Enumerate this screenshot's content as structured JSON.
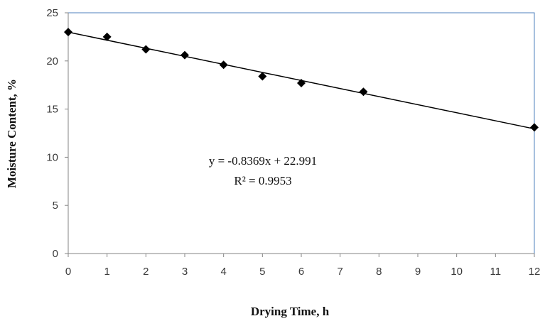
{
  "chart_data": {
    "type": "scatter",
    "title": "",
    "xlabel": "Drying Time, h",
    "ylabel": "Moisture Content, %",
    "xlim": [
      0,
      12
    ],
    "ylim": [
      0,
      25
    ],
    "xticks": [
      "0",
      "1",
      "2",
      "3",
      "4",
      "5",
      "6",
      "7",
      "8",
      "9",
      "10",
      "11",
      "12"
    ],
    "yticks": [
      "0",
      "5",
      "10",
      "15",
      "20",
      "25"
    ],
    "grid": false,
    "legend": "none",
    "series": [
      {
        "marker": "diamond",
        "color": "#000000",
        "points": [
          {
            "x": 0,
            "y": 23.0
          },
          {
            "x": 1,
            "y": 22.5
          },
          {
            "x": 2,
            "y": 21.2
          },
          {
            "x": 3,
            "y": 20.6
          },
          {
            "x": 4,
            "y": 19.6
          },
          {
            "x": 5,
            "y": 18.4
          },
          {
            "x": 6,
            "y": 17.7
          },
          {
            "x": 7.6,
            "y": 16.8
          },
          {
            "x": 12,
            "y": 13.1
          }
        ]
      }
    ],
    "trendline": {
      "type": "linear",
      "slope": -0.8369,
      "intercept": 22.991,
      "color": "#000000"
    },
    "annotations": {
      "equation": "y = -0.8369x + 22.991",
      "r_squared": "R² = 0.9953"
    },
    "plot_border_color": "#4f81bd",
    "axis_color": "#868686"
  }
}
